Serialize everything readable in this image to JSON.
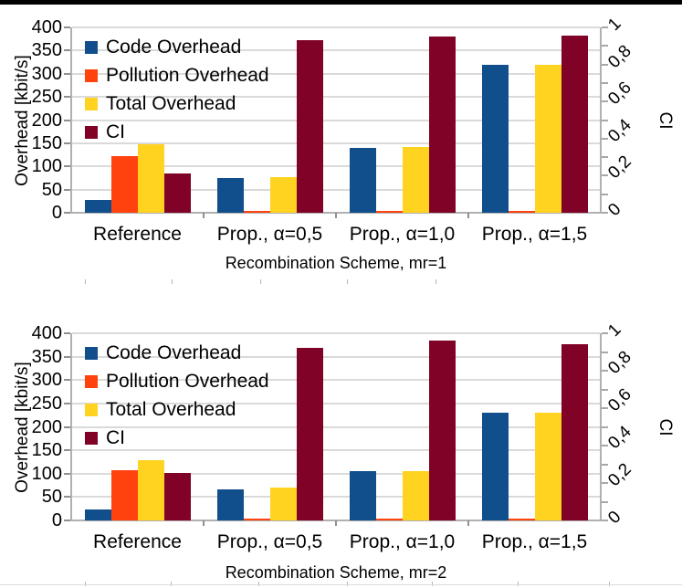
{
  "page": {
    "background": "#ffffff",
    "top_border_color": "#000000"
  },
  "chart_data": [
    {
      "type": "bar",
      "xlabel": "Recombination Scheme, mr=1",
      "ylabel_left": "Overhead [kbit/s]",
      "ylabel_right": "CI",
      "categories": [
        "Reference",
        "Prop., α=0,5",
        "Prop., α=1,0",
        "Prop., α=1,5"
      ],
      "left_axis": {
        "min": 0,
        "max": 400,
        "tick_step": 50,
        "tick_labels": [
          "0",
          "50",
          "100",
          "150",
          "200",
          "250",
          "300",
          "350",
          "400"
        ]
      },
      "right_axis": {
        "min": 0,
        "max": 1,
        "minor_tick_count": 10,
        "tick_values": [
          0,
          0.2,
          0.4,
          0.6,
          0.8,
          1
        ],
        "tick_labels": [
          "0",
          "0,2",
          "0,4",
          "0,6",
          "0,8",
          "1"
        ]
      },
      "grid": true,
      "legend_position": "top-left-inside",
      "series": [
        {
          "name": "Code Overhead",
          "axis": "left",
          "color": "#114e8c",
          "values": [
            27,
            75,
            140,
            320
          ]
        },
        {
          "name": "Pollution Overhead",
          "axis": "left",
          "color": "#ff420e",
          "values": [
            122,
            3,
            2,
            2
          ]
        },
        {
          "name": "Total Overhead",
          "axis": "left",
          "color": "#ffd320",
          "values": [
            148,
            77,
            142,
            320
          ]
        },
        {
          "name": "CI",
          "axis": "right",
          "color": "#800226",
          "values": [
            0.21,
            0.93,
            0.95,
            0.955
          ]
        }
      ]
    },
    {
      "type": "bar",
      "xlabel": "Recombination Scheme, mr=2",
      "ylabel_left": "Overhead [kbit/s]",
      "ylabel_right": "CI",
      "categories": [
        "Reference",
        "Prop., α=0,5",
        "Prop., α=1,0",
        "Prop., α=1,5"
      ],
      "left_axis": {
        "min": 0,
        "max": 400,
        "tick_step": 50,
        "tick_labels": [
          "0",
          "50",
          "100",
          "150",
          "200",
          "250",
          "300",
          "350",
          "400"
        ]
      },
      "right_axis": {
        "min": 0,
        "max": 1,
        "minor_tick_count": 10,
        "tick_values": [
          0,
          0.2,
          0.4,
          0.6,
          0.8,
          1
        ],
        "tick_labels": [
          "0",
          "0,2",
          "0,4",
          "0,6",
          "0,8",
          "1"
        ]
      },
      "grid": true,
      "legend_position": "top-left-inside",
      "series": [
        {
          "name": "Code Overhead",
          "axis": "left",
          "color": "#114e8c",
          "values": [
            23,
            67,
            106,
            230
          ]
        },
        {
          "name": "Pollution Overhead",
          "axis": "left",
          "color": "#ff420e",
          "values": [
            107,
            3,
            1,
            1
          ]
        },
        {
          "name": "Total Overhead",
          "axis": "left",
          "color": "#ffd320",
          "values": [
            129,
            70,
            106,
            230
          ]
        },
        {
          "name": "CI",
          "axis": "right",
          "color": "#800226",
          "values": [
            0.255,
            0.92,
            0.96,
            0.94
          ]
        }
      ]
    }
  ]
}
